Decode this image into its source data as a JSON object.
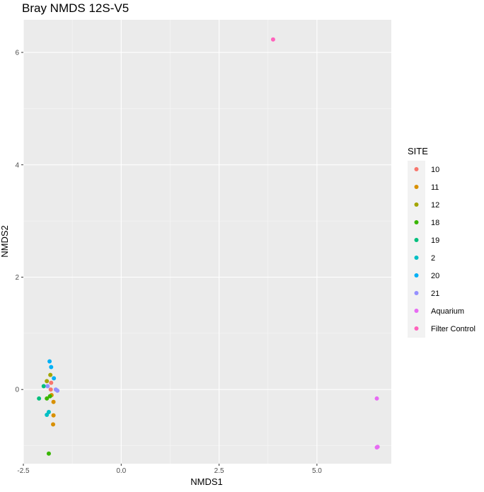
{
  "chart_data": {
    "type": "scatter",
    "title": "Bray NMDS 12S-V5",
    "xlabel": "NMDS1",
    "ylabel": "NMDS2",
    "xlim": [
      -2.5,
      6.9
    ],
    "ylim": [
      -1.32,
      6.58
    ],
    "x_ticks": [
      -2.5,
      0.0,
      2.5,
      5.0
    ],
    "x_tick_labels": [
      "-2.5",
      "0.0",
      "2.5",
      "5.0"
    ],
    "y_ticks": [
      0,
      2,
      4,
      6
    ],
    "y_tick_labels": [
      "0",
      "2",
      "4",
      "6"
    ],
    "grid": true,
    "legend_title": "SITE",
    "legend_position": "right",
    "series": [
      {
        "name": "10",
        "color": "#F8766D",
        "points": [
          [
            -1.79,
            0.12
          ],
          [
            -1.8,
            0.0
          ]
        ]
      },
      {
        "name": "11",
        "color": "#D89000",
        "points": [
          [
            -1.73,
            -0.22
          ],
          [
            -1.73,
            -0.46
          ],
          [
            -1.74,
            -0.62
          ],
          [
            -1.78,
            -0.1
          ]
        ]
      },
      {
        "name": "12",
        "color": "#A3A500",
        "points": [
          [
            -1.81,
            0.26
          ],
          [
            -1.9,
            0.15
          ]
        ]
      },
      {
        "name": "18",
        "color": "#39B600",
        "points": [
          [
            -1.85,
            -1.14
          ],
          [
            -1.9,
            -0.16
          ],
          [
            -1.82,
            -0.12
          ]
        ]
      },
      {
        "name": "19",
        "color": "#00BF7D",
        "points": [
          [
            -2.1,
            -0.16
          ],
          [
            -1.98,
            0.06
          ]
        ]
      },
      {
        "name": "2",
        "color": "#00BFC4",
        "points": [
          [
            -1.9,
            -0.45
          ],
          [
            -1.85,
            -0.4
          ]
        ]
      },
      {
        "name": "20",
        "color": "#00B0F6",
        "points": [
          [
            -1.83,
            0.5
          ],
          [
            -1.79,
            0.4
          ],
          [
            -1.72,
            0.2
          ]
        ]
      },
      {
        "name": "21",
        "color": "#9590FF",
        "points": [
          [
            -1.67,
            0.0
          ],
          [
            -1.63,
            -0.02
          ],
          [
            -1.88,
            0.06
          ]
        ]
      },
      {
        "name": "Aquarium",
        "color": "#E76BF3",
        "points": [
          [
            6.53,
            -0.16
          ],
          [
            6.53,
            -1.03
          ],
          [
            6.55,
            -1.02
          ]
        ]
      },
      {
        "name": "Filter Control",
        "color": "#FF62BC",
        "points": [
          [
            3.88,
            6.23
          ]
        ]
      }
    ]
  }
}
